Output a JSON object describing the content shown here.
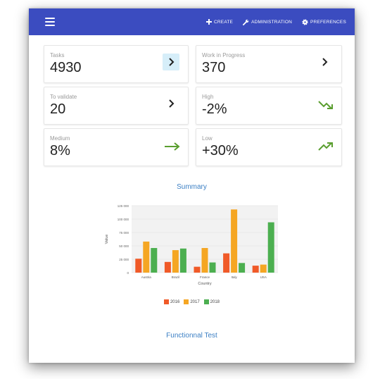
{
  "header": {
    "create_label": "CREATE",
    "administration_label": "ADMINISTRATION",
    "preferences_label": "PREFERENCES",
    "bar_color": "#3b4cc0"
  },
  "cards": {
    "tasks": {
      "label": "Tasks",
      "value": "4930"
    },
    "wip": {
      "label": "Work in Progress",
      "value": "370"
    },
    "to_validate": {
      "label": "To validate",
      "value": "20"
    },
    "high": {
      "label": "High",
      "value": "-2%",
      "trend": "trending-down-icon"
    },
    "medium": {
      "label": "Medium",
      "value": "8%",
      "trend": "arrow-right-icon"
    },
    "low": {
      "label": "Low",
      "value": "+30%",
      "trend": "trending-up-icon"
    }
  },
  "sections": {
    "summary_title": "Summary",
    "functional_title": "Functionnal Test"
  },
  "chart_data": {
    "type": "bar",
    "title": "",
    "xlabel": "Country",
    "ylabel": "Value",
    "categories": [
      "Austria",
      "Brazil",
      "France",
      "Italy",
      "USA"
    ],
    "series": [
      {
        "name": "2016",
        "color": "#f05a28",
        "values": [
          26000,
          20000,
          11000,
          36000,
          13000
        ]
      },
      {
        "name": "2017",
        "color": "#f5a623",
        "values": [
          58000,
          42000,
          46000,
          118000,
          15000
        ]
      },
      {
        "name": "2018",
        "color": "#4caf50",
        "values": [
          46000,
          45000,
          19000,
          18000,
          94000
        ]
      }
    ],
    "ylim": [
      0,
      125000
    ],
    "yticks": [
      "125 000",
      "100 000",
      "75 000",
      "50 000",
      "25 000",
      "0"
    ],
    "grid": true,
    "legend": "bottom"
  }
}
